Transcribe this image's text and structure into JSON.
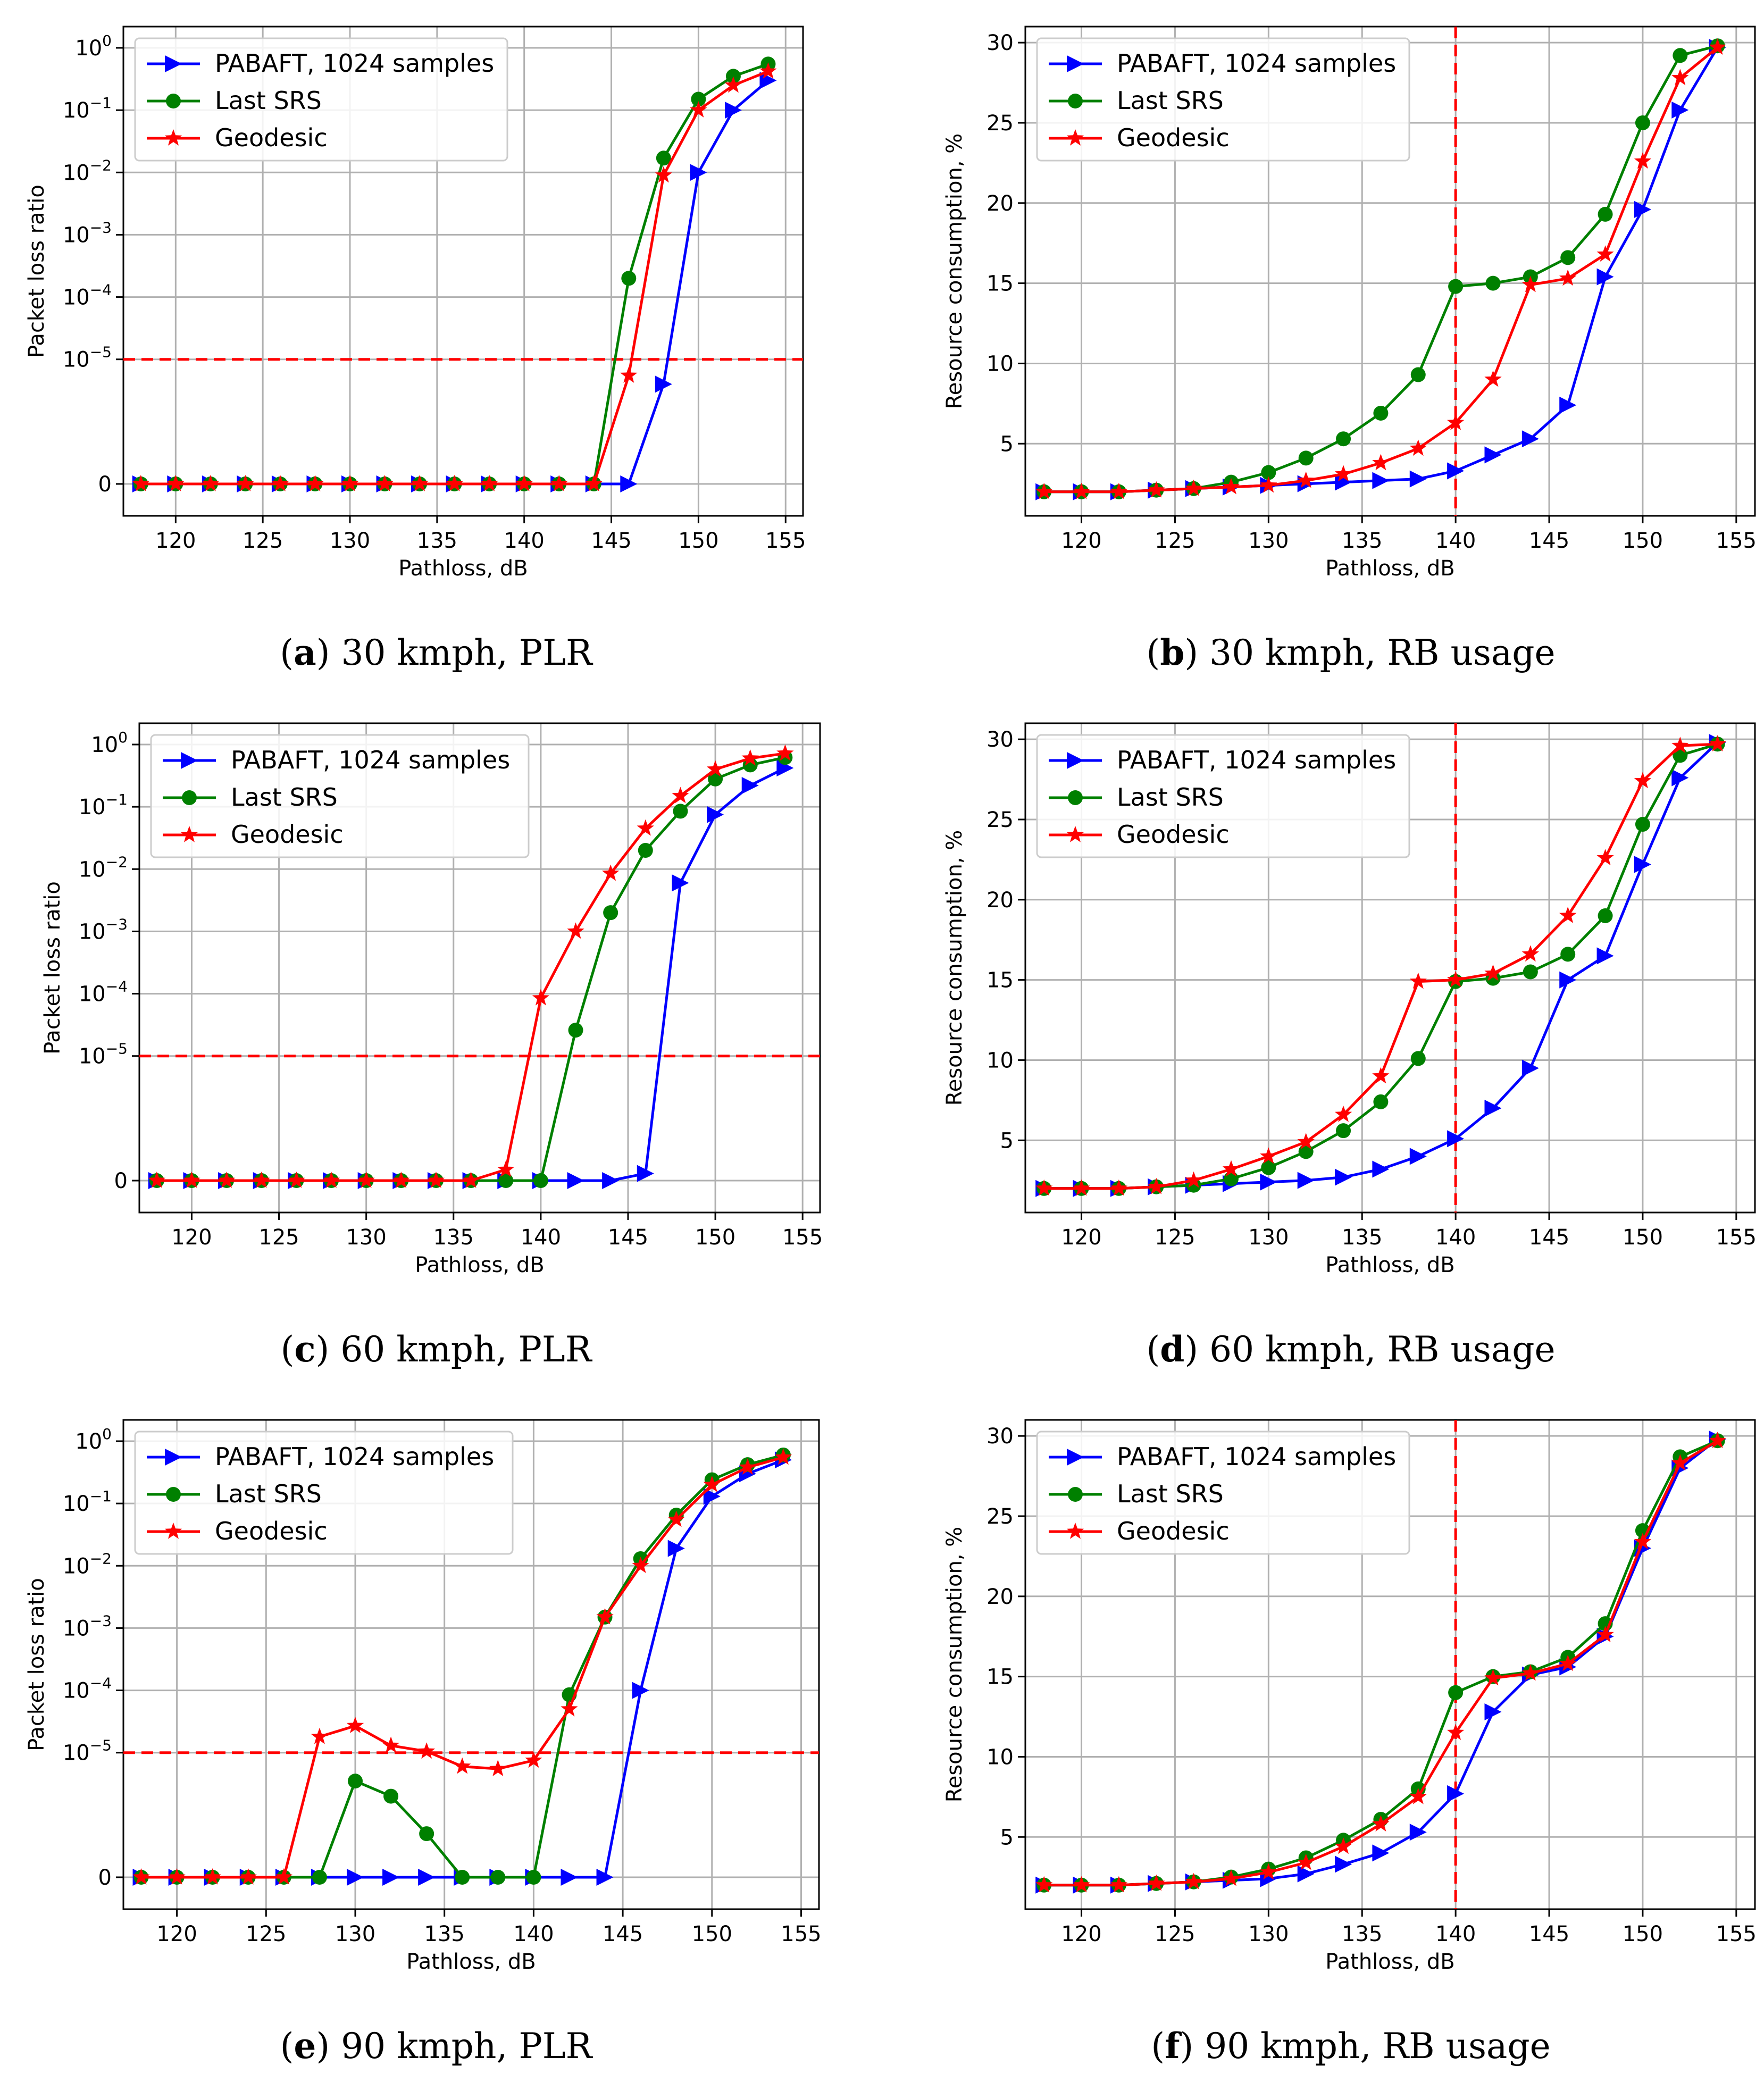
{
  "figure": {
    "panels": [
      {
        "id": "a",
        "caption_letter": "a",
        "caption_text": "30 kmph, PLR"
      },
      {
        "id": "b",
        "caption_letter": "b",
        "caption_text": "30 kmph, RB usage"
      },
      {
        "id": "c",
        "caption_letter": "c",
        "caption_text": "60 kmph, PLR"
      },
      {
        "id": "d",
        "caption_letter": "d",
        "caption_text": "60 kmph, RB usage"
      },
      {
        "id": "e",
        "caption_letter": "e",
        "caption_text": "90 kmph, PLR"
      },
      {
        "id": "f",
        "caption_letter": "f",
        "caption_text": "90 kmph, RB usage"
      }
    ]
  },
  "colors": {
    "pabaft": "#0000ff",
    "last_srs": "#008000",
    "geodesic": "#ff0000",
    "threshold": "#ff0000",
    "grid": "#b0b0b0"
  },
  "chart_data": [
    {
      "id": "a",
      "type": "line",
      "yscale": "symlog",
      "title": "",
      "xlabel": "Pathloss, dB",
      "ylabel": "Packet loss ratio",
      "xlim": [
        117,
        156
      ],
      "ylim_exp": [
        -7,
        0
      ],
      "xticks": [
        "120",
        "125",
        "130",
        "135",
        "140",
        "145",
        "150",
        "155"
      ],
      "yticks": [
        {
          "label": "0",
          "sup": "",
          "value": 0
        },
        {
          "label": "10",
          "sup": "−5",
          "value": 1e-05
        },
        {
          "label": "10",
          "sup": "−4",
          "value": 0.0001
        },
        {
          "label": "10",
          "sup": "−3",
          "value": 0.001
        },
        {
          "label": "10",
          "sup": "−2",
          "value": 0.01
        },
        {
          "label": "10",
          "sup": "−1",
          "value": 0.1
        },
        {
          "label": "10",
          "sup": "0",
          "value": 1
        }
      ],
      "threshold": {
        "axis": "y",
        "value": 1e-05
      },
      "legend_position": "top-left",
      "x": [
        118,
        120,
        122,
        124,
        126,
        128,
        130,
        132,
        134,
        136,
        138,
        140,
        142,
        144,
        146,
        148,
        150,
        152,
        154
      ],
      "series": [
        {
          "name": "PABAFT, 1024 samples",
          "marker": "triangle",
          "values": [
            0,
            0,
            0,
            0,
            0,
            0,
            0,
            0,
            0,
            0,
            0,
            0,
            0,
            0,
            0,
            4e-06,
            0.01,
            0.1,
            0.3
          ]
        },
        {
          "name": "Last SRS",
          "marker": "circle",
          "values": [
            0,
            0,
            0,
            0,
            0,
            0,
            0,
            0,
            0,
            0,
            0,
            0,
            0,
            1e-07,
            0.0002,
            0.017,
            0.15,
            0.35,
            0.55
          ]
        },
        {
          "name": "Geodesic",
          "marker": "star",
          "values": [
            0,
            0,
            0,
            0,
            0,
            0,
            0,
            0,
            0,
            0,
            0,
            0,
            0,
            0,
            5.5e-06,
            0.009,
            0.1,
            0.25,
            0.42
          ]
        }
      ]
    },
    {
      "id": "b",
      "type": "line",
      "yscale": "linear",
      "title": "",
      "xlabel": "Pathloss, dB",
      "ylabel": "Resource consumption, %",
      "xlim": [
        117,
        156
      ],
      "ylim": [
        0.5,
        31
      ],
      "xticks": [
        "120",
        "125",
        "130",
        "135",
        "140",
        "145",
        "150",
        "155"
      ],
      "yticks": [
        "5",
        "10",
        "15",
        "20",
        "25",
        "30"
      ],
      "threshold": {
        "axis": "x",
        "value": 140
      },
      "legend_position": "top-left",
      "x": [
        118,
        120,
        122,
        124,
        126,
        128,
        130,
        132,
        134,
        136,
        138,
        140,
        142,
        144,
        146,
        148,
        150,
        152,
        154
      ],
      "series": [
        {
          "name": "PABAFT, 1024 samples",
          "marker": "triangle",
          "values": [
            2,
            2,
            2,
            2.1,
            2.2,
            2.3,
            2.4,
            2.5,
            2.6,
            2.7,
            2.8,
            3.3,
            4.3,
            5.3,
            7.4,
            15.4,
            19.6,
            25.8,
            29.7
          ]
        },
        {
          "name": "Last SRS",
          "marker": "circle",
          "values": [
            2,
            2,
            2,
            2.1,
            2.2,
            2.6,
            3.2,
            4.1,
            5.3,
            6.9,
            9.3,
            14.8,
            15,
            15.4,
            16.6,
            19.3,
            25,
            29.2,
            29.8
          ]
        },
        {
          "name": "Geodesic",
          "marker": "star",
          "values": [
            2,
            2,
            2,
            2.1,
            2.2,
            2.3,
            2.4,
            2.7,
            3.1,
            3.8,
            4.7,
            6.3,
            9,
            14.9,
            15.3,
            16.8,
            22.6,
            27.8,
            29.7
          ]
        }
      ]
    },
    {
      "id": "c",
      "type": "line",
      "yscale": "symlog",
      "title": "",
      "xlabel": "Pathloss, dB",
      "ylabel": "Packet loss ratio",
      "xlim": [
        117,
        156
      ],
      "ylim_exp": [
        -7,
        0
      ],
      "xticks": [
        "120",
        "125",
        "130",
        "135",
        "140",
        "145",
        "150",
        "155"
      ],
      "yticks": [
        {
          "label": "0",
          "sup": "",
          "value": 0
        },
        {
          "label": "10",
          "sup": "−5",
          "value": 1e-05
        },
        {
          "label": "10",
          "sup": "−4",
          "value": 0.0001
        },
        {
          "label": "10",
          "sup": "−3",
          "value": 0.001
        },
        {
          "label": "10",
          "sup": "−2",
          "value": 0.01
        },
        {
          "label": "10",
          "sup": "−1",
          "value": 0.1
        },
        {
          "label": "10",
          "sup": "0",
          "value": 1
        }
      ],
      "threshold": {
        "axis": "y",
        "value": 1e-05
      },
      "legend_position": "top-left",
      "x": [
        118,
        120,
        122,
        124,
        126,
        128,
        130,
        132,
        134,
        136,
        138,
        140,
        142,
        144,
        146,
        148,
        150,
        152,
        154
      ],
      "series": [
        {
          "name": "PABAFT, 1024 samples",
          "marker": "triangle",
          "values": [
            0,
            0,
            0,
            0,
            0,
            0,
            0,
            0,
            0,
            0,
            0,
            0,
            0,
            0,
            1.3e-07,
            0.006,
            0.075,
            0.22,
            0.42
          ]
        },
        {
          "name": "Last SRS",
          "marker": "circle",
          "values": [
            0,
            0,
            0,
            0,
            0,
            0,
            0,
            5e-08,
            0,
            0,
            0,
            0,
            2.6e-05,
            0.002,
            0.02,
            0.085,
            0.28,
            0.47,
            0.62
          ]
        },
        {
          "name": "Geodesic",
          "marker": "star",
          "values": [
            0,
            0,
            0,
            0,
            0,
            0,
            0,
            0,
            0,
            4e-08,
            1.5e-07,
            8.5e-05,
            0.001,
            0.0085,
            0.045,
            0.15,
            0.4,
            0.6,
            0.72
          ]
        }
      ]
    },
    {
      "id": "d",
      "type": "line",
      "yscale": "linear",
      "title": "",
      "xlabel": "Pathloss, dB",
      "ylabel": "Resource consumption, %",
      "xlim": [
        117,
        156
      ],
      "ylim": [
        0.5,
        31
      ],
      "xticks": [
        "120",
        "125",
        "130",
        "135",
        "140",
        "145",
        "150",
        "155"
      ],
      "yticks": [
        "5",
        "10",
        "15",
        "20",
        "25",
        "30"
      ],
      "threshold": {
        "axis": "x",
        "value": 140
      },
      "legend_position": "top-left",
      "x": [
        118,
        120,
        122,
        124,
        126,
        128,
        130,
        132,
        134,
        136,
        138,
        140,
        142,
        144,
        146,
        148,
        150,
        152,
        154
      ],
      "series": [
        {
          "name": "PABAFT, 1024 samples",
          "marker": "triangle",
          "values": [
            2,
            2,
            2,
            2.1,
            2.2,
            2.3,
            2.4,
            2.5,
            2.7,
            3.2,
            4,
            5.1,
            7,
            9.5,
            15,
            16.5,
            22.2,
            27.6,
            29.8
          ]
        },
        {
          "name": "Last SRS",
          "marker": "circle",
          "values": [
            2,
            2,
            2,
            2.1,
            2.2,
            2.6,
            3.3,
            4.3,
            5.6,
            7.4,
            10.1,
            14.9,
            15.1,
            15.5,
            16.6,
            19,
            24.7,
            29,
            29.7
          ]
        },
        {
          "name": "Geodesic",
          "marker": "star",
          "values": [
            2,
            2,
            2,
            2.1,
            2.5,
            3.2,
            4,
            4.9,
            6.6,
            9,
            14.9,
            15,
            15.4,
            16.6,
            19,
            22.6,
            27.4,
            29.6,
            29.7
          ]
        }
      ]
    },
    {
      "id": "e",
      "type": "line",
      "yscale": "symlog",
      "title": "",
      "xlabel": "Pathloss, dB",
      "ylabel": "Packet loss ratio",
      "xlim": [
        117,
        156
      ],
      "ylim_exp": [
        -7,
        0
      ],
      "xticks": [
        "120",
        "125",
        "130",
        "135",
        "140",
        "145",
        "150",
        "155"
      ],
      "yticks": [
        {
          "label": "0",
          "sup": "",
          "value": 0
        },
        {
          "label": "10",
          "sup": "−5",
          "value": 1e-05
        },
        {
          "label": "10",
          "sup": "−4",
          "value": 0.0001
        },
        {
          "label": "10",
          "sup": "−3",
          "value": 0.001
        },
        {
          "label": "10",
          "sup": "−2",
          "value": 0.01
        },
        {
          "label": "10",
          "sup": "−1",
          "value": 0.1
        },
        {
          "label": "10",
          "sup": "0",
          "value": 1
        }
      ],
      "threshold": {
        "axis": "y",
        "value": 1e-05
      },
      "legend_position": "top-left",
      "x": [
        118,
        120,
        122,
        124,
        126,
        128,
        130,
        132,
        134,
        136,
        138,
        140,
        142,
        144,
        146,
        148,
        150,
        152,
        154
      ],
      "series": [
        {
          "name": "PABAFT, 1024 samples",
          "marker": "triangle",
          "values": [
            0,
            0,
            0,
            0,
            0,
            0,
            0,
            0,
            0,
            0,
            0,
            0,
            0,
            0,
            0.0001,
            0.019,
            0.13,
            0.3,
            0.5
          ]
        },
        {
          "name": "Last SRS",
          "marker": "circle",
          "values": [
            0,
            0,
            0,
            0,
            5e-08,
            1e-07,
            3.5e-06,
            2e-06,
            5e-07,
            0,
            2e-08,
            0,
            8.5e-05,
            0.0015,
            0.013,
            0.065,
            0.24,
            0.42,
            0.6
          ]
        },
        {
          "name": "Geodesic",
          "marker": "star",
          "values": [
            0,
            0,
            0,
            4e-08,
            8e-08,
            1.8e-05,
            2.7e-05,
            1.3e-05,
            1.05e-05,
            6e-06,
            5.5e-06,
            7.5e-06,
            5e-05,
            0.0015,
            0.01,
            0.055,
            0.2,
            0.38,
            0.55
          ]
        }
      ]
    },
    {
      "id": "f",
      "type": "line",
      "yscale": "linear",
      "title": "",
      "xlabel": "Pathloss, dB",
      "ylabel": "Resource consumption, %",
      "xlim": [
        117,
        156
      ],
      "ylim": [
        0.5,
        31
      ],
      "xticks": [
        "120",
        "125",
        "130",
        "135",
        "140",
        "145",
        "150",
        "155"
      ],
      "yticks": [
        "5",
        "10",
        "15",
        "20",
        "25",
        "30"
      ],
      "threshold": {
        "axis": "x",
        "value": 140
      },
      "legend_position": "top-left",
      "x": [
        118,
        120,
        122,
        124,
        126,
        128,
        130,
        132,
        134,
        136,
        138,
        140,
        142,
        144,
        146,
        148,
        150,
        152,
        154
      ],
      "series": [
        {
          "name": "PABAFT, 1024 samples",
          "marker": "triangle",
          "values": [
            2,
            2,
            2,
            2.1,
            2.2,
            2.3,
            2.4,
            2.7,
            3.3,
            4,
            5.3,
            7.7,
            12.8,
            15.1,
            15.6,
            17.5,
            23,
            28,
            29.8
          ]
        },
        {
          "name": "Last SRS",
          "marker": "circle",
          "values": [
            2,
            2,
            2,
            2.1,
            2.2,
            2.5,
            3,
            3.7,
            4.8,
            6.1,
            8,
            14,
            15,
            15.3,
            16.2,
            18.3,
            24.1,
            28.7,
            29.7
          ]
        },
        {
          "name": "Geodesic",
          "marker": "star",
          "values": [
            2,
            2,
            2,
            2.1,
            2.2,
            2.4,
            2.8,
            3.4,
            4.4,
            5.8,
            7.5,
            11.5,
            14.9,
            15.2,
            15.8,
            17.6,
            23.4,
            28.3,
            29.7
          ]
        }
      ]
    }
  ]
}
